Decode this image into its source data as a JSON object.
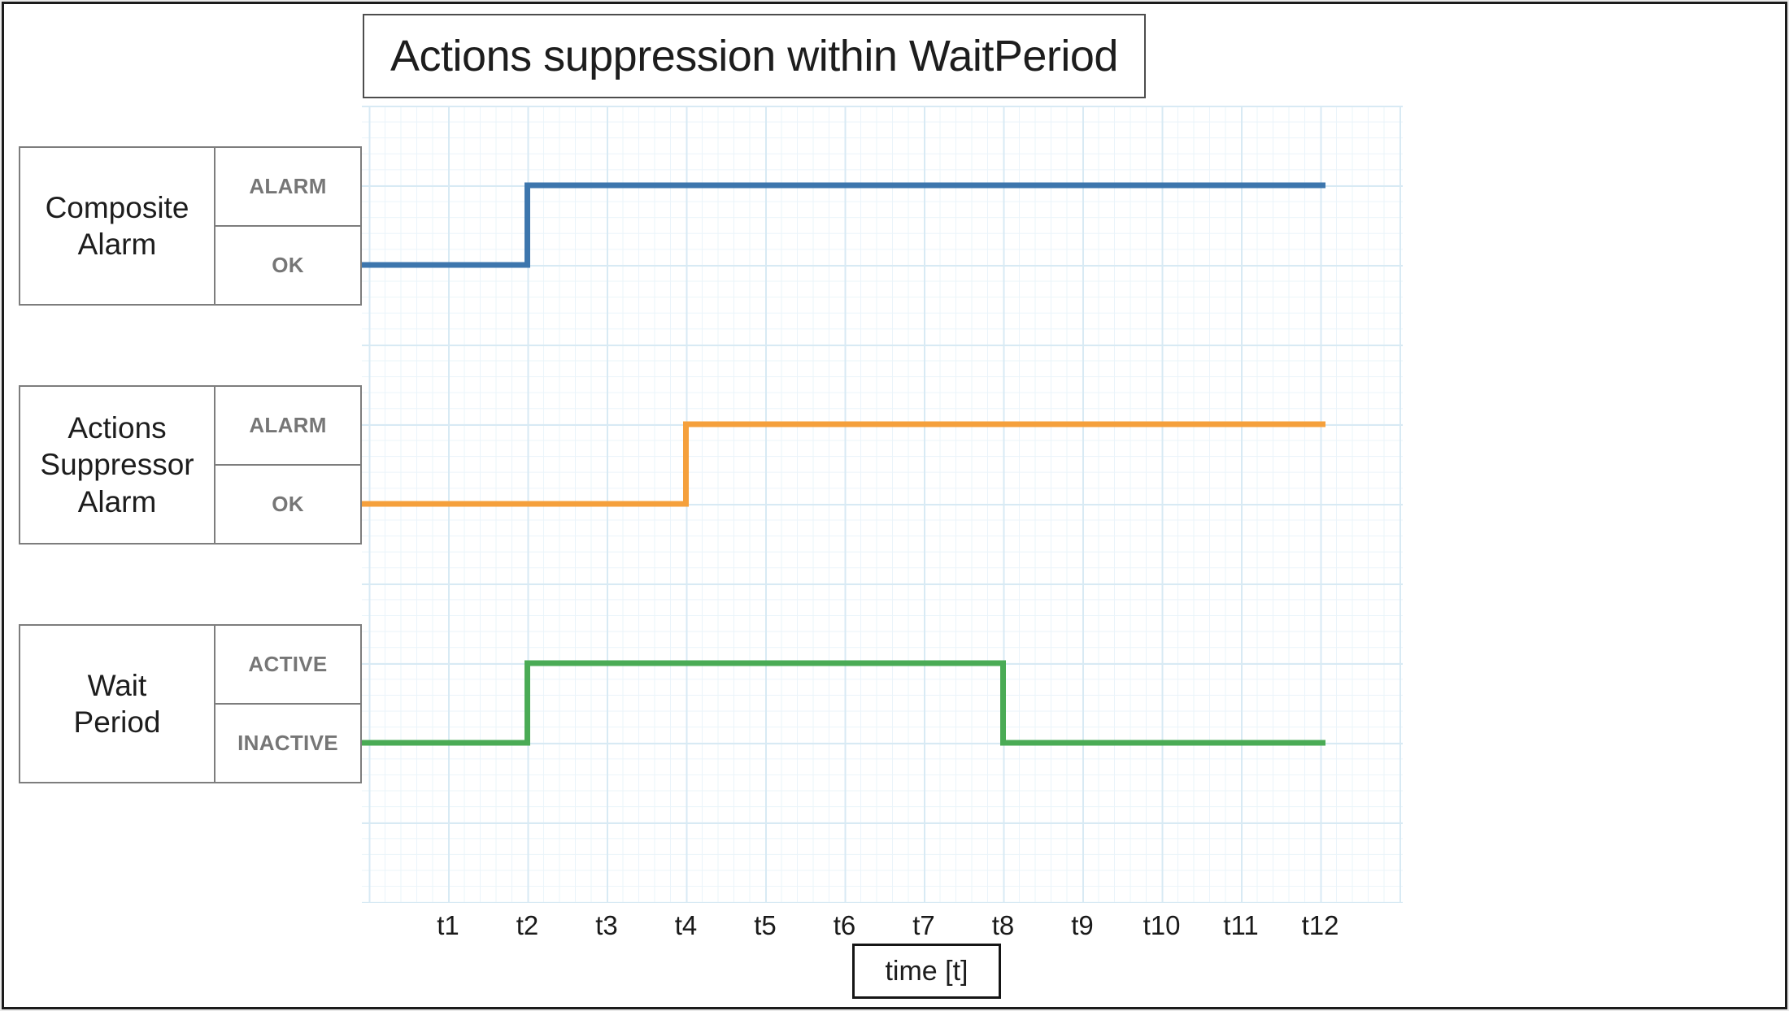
{
  "title": "Actions suppression within WaitPeriod",
  "axis": {
    "xlabel": "time [t]",
    "ticks": [
      "t1",
      "t2",
      "t3",
      "t4",
      "t5",
      "t6",
      "t7",
      "t8",
      "t9",
      "t10",
      "t11",
      "t12"
    ]
  },
  "signals": [
    {
      "name": "Composite\nAlarm",
      "high_label": "ALARM",
      "low_label": "OK",
      "color": "#3d76ad",
      "initial_state": "OK",
      "transitions": [
        {
          "t": 2,
          "to": "ALARM"
        }
      ]
    },
    {
      "name": "Actions\nSuppressor\nAlarm",
      "high_label": "ALARM",
      "low_label": "OK",
      "color": "#f5a03c",
      "initial_state": "OK",
      "transitions": [
        {
          "t": 4,
          "to": "ALARM"
        }
      ]
    },
    {
      "name": "Wait\nPeriod",
      "high_label": "ACTIVE",
      "low_label": "INACTIVE",
      "color": "#4aab55",
      "initial_state": "INACTIVE",
      "transitions": [
        {
          "t": 2,
          "to": "ACTIVE"
        },
        {
          "t": 8,
          "to": "INACTIVE"
        }
      ]
    }
  ],
  "colors": {
    "grid_minor": "#eaf4fa",
    "grid_major": "#d8eaf4",
    "state_label": "#767676",
    "box_border": "#7d7d7d",
    "title_border": "#4d4d4d",
    "frame_border": "#1b1b1b",
    "composite_alarm_line": "#3d76ad",
    "actions_suppressor_line": "#f5a03c",
    "wait_period_line": "#4aab55"
  },
  "chart_data": {
    "type": "line",
    "subtype": "digital-timing-step",
    "title": "Actions suppression within WaitPeriod",
    "xlabel": "time [t]",
    "x_ticks": [
      "t1",
      "t2",
      "t3",
      "t4",
      "t5",
      "t6",
      "t7",
      "t8",
      "t9",
      "t10",
      "t11",
      "t12"
    ],
    "x_domain": [
      0,
      12
    ],
    "grid": true,
    "legend_position": "left-boxes",
    "series": [
      {
        "name": "Composite Alarm",
        "levels": [
          "OK",
          "ALARM"
        ],
        "steps": [
          {
            "from": "start",
            "to": "t2",
            "state": "OK"
          },
          {
            "from": "t2",
            "to": "end",
            "state": "ALARM"
          }
        ]
      },
      {
        "name": "Actions Suppressor Alarm",
        "levels": [
          "OK",
          "ALARM"
        ],
        "steps": [
          {
            "from": "start",
            "to": "t4",
            "state": "OK"
          },
          {
            "from": "t4",
            "to": "end",
            "state": "ALARM"
          }
        ]
      },
      {
        "name": "Wait Period",
        "levels": [
          "INACTIVE",
          "ACTIVE"
        ],
        "steps": [
          {
            "from": "start",
            "to": "t2",
            "state": "INACTIVE"
          },
          {
            "from": "t2",
            "to": "t8",
            "state": "ACTIVE"
          },
          {
            "from": "t8",
            "to": "end",
            "state": "INACTIVE"
          }
        ]
      }
    ]
  }
}
